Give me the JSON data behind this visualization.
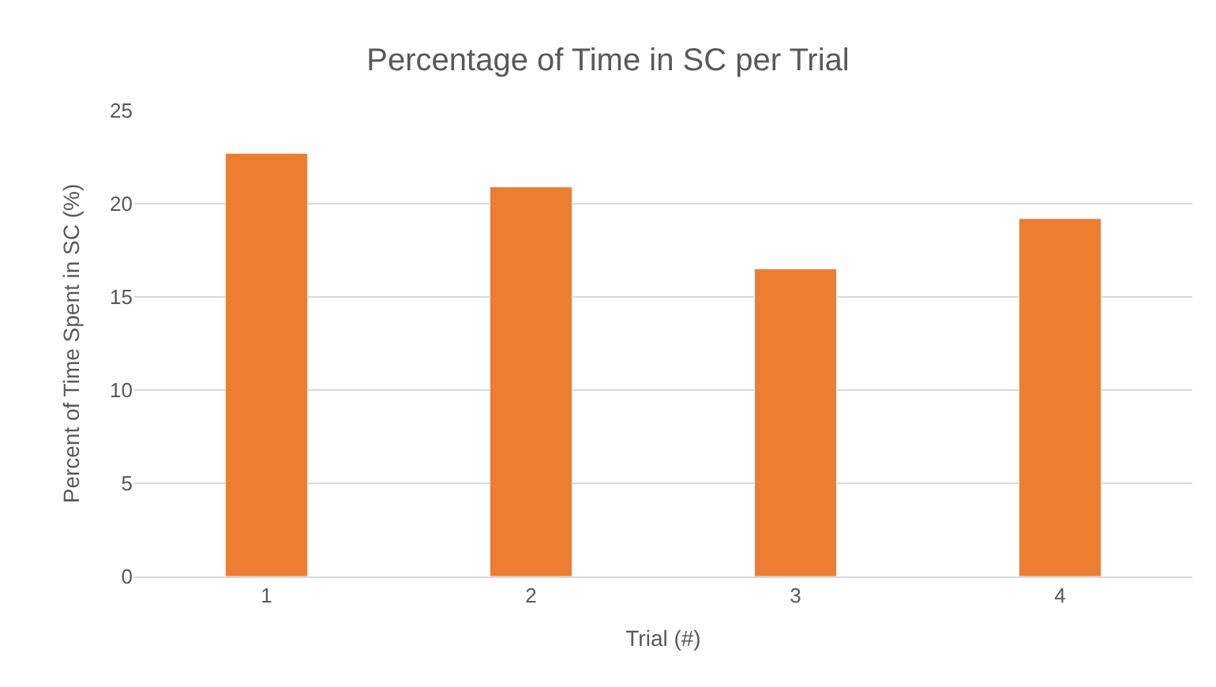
{
  "chart_data": {
    "type": "bar",
    "title": "Percentage of Time in SC per Trial",
    "xlabel": "Trial (#)",
    "ylabel": "Percent of Time Spent in SC (%)",
    "categories": [
      "1",
      "2",
      "3",
      "4"
    ],
    "series": [
      {
        "color": "#ed7d31",
        "values": [
          22.7,
          20.9,
          16.5,
          19.2
        ]
      }
    ],
    "ylim": [
      0,
      25
    ],
    "yticks": [
      0,
      5,
      10,
      15,
      20,
      25
    ],
    "grid": "y",
    "legend": false
  }
}
